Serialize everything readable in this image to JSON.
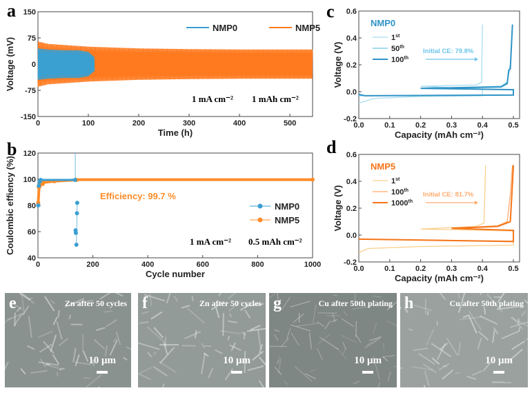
{
  "chart_data": [
    {
      "panel": "a",
      "type": "line",
      "xlabel": "Time (h)",
      "ylabel": "Voltage (mV)",
      "xlim": [
        0,
        545
      ],
      "ylim": [
        -150,
        150
      ],
      "xticks": [
        0,
        100,
        200,
        300,
        400,
        500
      ],
      "yticks": [
        150,
        75,
        0,
        -75,
        -150
      ],
      "annotations": [
        "1 mA cm⁻²",
        "1 mAh cm⁻²"
      ],
      "legend": "top-right",
      "series": [
        {
          "name": "NMP0",
          "color": "#3a9fd1",
          "envelope_t": [
            0,
            20,
            50,
            80,
            100,
            112
          ],
          "envelope_amp": [
            45,
            42,
            40,
            40,
            35,
            20
          ]
        },
        {
          "name": "NMP5",
          "color": "#ff7a1f",
          "envelope_t": [
            0,
            20,
            100,
            200,
            300,
            400,
            545
          ],
          "envelope_amp": [
            65,
            58,
            50,
            45,
            43,
            42,
            42
          ]
        }
      ]
    },
    {
      "panel": "b",
      "type": "scatter",
      "xlabel": "Cycle number",
      "ylabel": "Coulombic effiency (%)",
      "xlim": [
        0,
        1000
      ],
      "ylim": [
        40,
        120
      ],
      "xticks": [
        0,
        200,
        400,
        600,
        800,
        1000
      ],
      "yticks": [
        120,
        100,
        80,
        60,
        40
      ],
      "annotations": [
        "Efficiency: 99.7 %",
        "1 mA cm⁻²",
        "0.5 mAh cm⁻²"
      ],
      "legend": "right",
      "series": [
        {
          "name": "NMP0",
          "color": "#3a9fd1",
          "points": [
            [
              1,
              80
            ],
            [
              3,
              95
            ],
            [
              6,
              98
            ],
            [
              10,
              99.5
            ],
            [
              135,
              99.5
            ],
            [
              137,
              61
            ],
            [
              138,
              59
            ],
            [
              140,
              50
            ],
            [
              142,
              74
            ],
            [
              143,
              82
            ]
          ]
        },
        {
          "name": "NMP5",
          "color": "#ff8c2a",
          "points": [
            [
              1,
              82
            ],
            [
              3,
              94
            ],
            [
              8,
              96
            ],
            [
              20,
              97.5
            ],
            [
              60,
              98.5
            ],
            [
              140,
              99.5
            ],
            [
              1000,
              99.7
            ]
          ]
        }
      ]
    },
    {
      "panel": "c",
      "type": "line",
      "title": "NMP0",
      "xlabel": "Capacity (mAh cm⁻²)",
      "ylabel": "Voltage (V)",
      "xlim": [
        0,
        0.52
      ],
      "ylim": [
        -0.2,
        0.6
      ],
      "xticks": [
        "0.0",
        "0.1",
        "0.2",
        "0.3",
        "0.4",
        "0.5"
      ],
      "yticks": [
        "0.6",
        "0.4",
        "0.2",
        "0.0",
        "-0.2"
      ],
      "annotation": "Initial CE: 79.8%",
      "legend": "top-left",
      "series": [
        {
          "name": "1st",
          "sup": "st",
          "base": "1",
          "color": "#a8dcf2",
          "points": [
            [
              0,
              -0.085
            ],
            [
              0.05,
              -0.05
            ],
            [
              0.2,
              -0.035
            ],
            [
              0.4,
              -0.03
            ],
            [
              0.4,
              0.02
            ],
            [
              0.2,
              0.04
            ],
            [
              0.38,
              0.05
            ],
            [
              0.397,
              0.07
            ],
            [
              0.4,
              0.5
            ]
          ]
        },
        {
          "name": "50th",
          "sup": "th",
          "base": "50",
          "color": "#6cc5ea",
          "points": [
            [
              0,
              -0.03
            ],
            [
              0.5,
              -0.025
            ],
            [
              0.5,
              0.015
            ],
            [
              0.2,
              0.025
            ],
            [
              0.46,
              0.04
            ],
            [
              0.48,
              0.07
            ],
            [
              0.49,
              0.2
            ],
            [
              0.497,
              0.5
            ]
          ]
        },
        {
          "name": "100th",
          "sup": "th",
          "base": "100",
          "color": "#2f93c6",
          "points": [
            [
              0,
              -0.02
            ],
            [
              0.02,
              -0.03
            ],
            [
              0.5,
              -0.025
            ],
            [
              0.5,
              0.015
            ],
            [
              0.2,
              0.025
            ],
            [
              0.46,
              0.035
            ],
            [
              0.48,
              0.06
            ],
            [
              0.485,
              0.16
            ],
            [
              0.49,
              0.17
            ],
            [
              0.497,
              0.5
            ]
          ]
        }
      ]
    },
    {
      "panel": "d",
      "type": "line",
      "title": "NMP5",
      "xlabel": "Capacity (mAh cm⁻²)",
      "ylabel": "Voltage (V)",
      "xlim": [
        0,
        0.52
      ],
      "ylim": [
        -0.2,
        0.6
      ],
      "xticks": [
        "0.0",
        "0.1",
        "0.2",
        "0.3",
        "0.4",
        "0.5"
      ],
      "yticks": [
        "0.6",
        "0.4",
        "0.2",
        "0.0",
        "-0.2"
      ],
      "annotation": "Initial CE: 81.7%",
      "legend": "top-left",
      "series": [
        {
          "name": "1st",
          "sup": "st",
          "base": "1",
          "color": "#f9cf8c",
          "points": [
            [
              0,
              -0.13
            ],
            [
              0.03,
              -0.1
            ],
            [
              0.2,
              -0.085
            ],
            [
              0.5,
              -0.075
            ],
            [
              0.5,
              0.03
            ],
            [
              0.2,
              0.045
            ],
            [
              0.38,
              0.065
            ],
            [
              0.405,
              0.09
            ],
            [
              0.41,
              0.52
            ]
          ]
        },
        {
          "name": "100th",
          "sup": "th",
          "base": "100",
          "color": "#ffab6e",
          "points": [
            [
              0,
              -0.03
            ],
            [
              0.5,
              -0.045
            ],
            [
              0.5,
              0.035
            ],
            [
              0.3,
              0.05
            ],
            [
              0.45,
              0.07
            ],
            [
              0.48,
              0.1
            ],
            [
              0.49,
              0.3
            ],
            [
              0.497,
              0.52
            ]
          ]
        },
        {
          "name": "1000th",
          "sup": "th",
          "base": "1000",
          "color": "#f57418",
          "points": [
            [
              0,
              -0.03
            ],
            [
              0.5,
              -0.048
            ],
            [
              0.5,
              0.035
            ],
            [
              0.3,
              0.05
            ],
            [
              0.45,
              0.065
            ],
            [
              0.49,
              0.1
            ],
            [
              0.495,
              0.3
            ],
            [
              0.5,
              0.52
            ]
          ]
        }
      ]
    }
  ],
  "panel_letters": [
    "a",
    "b",
    "c",
    "d",
    "e",
    "f",
    "g",
    "h"
  ],
  "sem": [
    {
      "letter": "e",
      "caption": "Zn after 50 cycles",
      "scale": "10 μm"
    },
    {
      "letter": "f",
      "caption": "Zn after 50 cycles",
      "scale": "10 μm"
    },
    {
      "letter": "g",
      "caption": "Cu after 50th plating",
      "scale": "10 μm"
    },
    {
      "letter": "h",
      "caption": "Cu after 50th plating",
      "scale": "10 μm"
    }
  ]
}
